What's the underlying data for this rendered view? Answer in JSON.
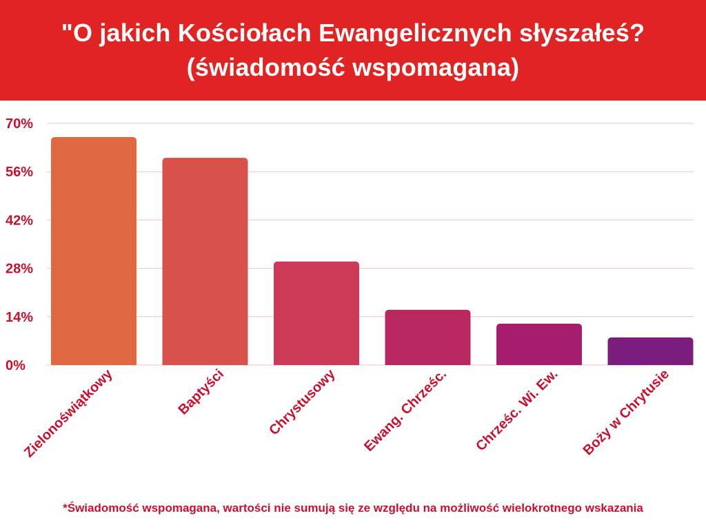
{
  "header": {
    "title_line1": "\"O jakich Kościołach Ewangelicznych słyszałeś?",
    "title_line2": "(świadomość wspomagana)"
  },
  "chart_data": {
    "type": "bar",
    "categories": [
      "Zielonoświątkowy",
      "Baptyści",
      "Chrystusowy",
      "Ewang. Chrześc.",
      "Chrześc. Wi. Ew.",
      "Boży w Chrytusie"
    ],
    "values": [
      66,
      60,
      30,
      16,
      12,
      8
    ],
    "ylim": [
      0,
      70
    ],
    "yticks": [
      "0%",
      "14%",
      "28%",
      "42%",
      "56%",
      "70%"
    ],
    "ytick_values": [
      0,
      14,
      28,
      42,
      56,
      70
    ],
    "grid": true,
    "bar_colors": [
      "#e06944",
      "#d9514b",
      "#cc3a55",
      "#b82860",
      "#a51e6e",
      "#7b1d7e"
    ],
    "label_color": "#c8102e",
    "grid_color": "#f2c4c4"
  },
  "footnote": "*Świadomość wspomagana, wartości nie sumują się ze względu na możliwość wielokrotnego wskazania"
}
